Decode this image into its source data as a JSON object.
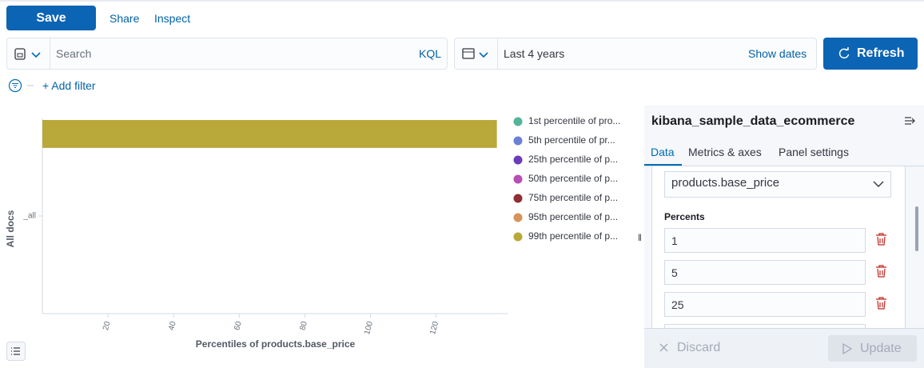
{
  "header": {
    "save": "Save",
    "share": "Share",
    "inspect": "Inspect"
  },
  "query": {
    "placeholder": "Search",
    "language": "KQL"
  },
  "time": {
    "range": "Last 4 years",
    "show_dates": "Show dates",
    "refresh": "Refresh"
  },
  "filter": {
    "add": "+ Add filter"
  },
  "chart_data": {
    "type": "bar",
    "orientation": "horizontal",
    "categories": [
      "_all"
    ],
    "y_axis_label": "All docs",
    "x_axis_label": "Percentiles of products.base_price",
    "xlim": [
      0,
      142
    ],
    "xticks": [
      20,
      40,
      60,
      80,
      100,
      120
    ],
    "series": [
      {
        "name": "1st percentile of pro...",
        "color": "#54b399",
        "values": [
          null
        ]
      },
      {
        "name": "5th percentile of pr...",
        "color": "#6b7fd4",
        "values": [
          null
        ]
      },
      {
        "name": "25th percentile of p...",
        "color": "#6a3cbc",
        "values": [
          null
        ]
      },
      {
        "name": "50th percentile of p...",
        "color": "#b84eb6",
        "values": [
          null
        ]
      },
      {
        "name": "75th percentile of p...",
        "color": "#912e33",
        "values": [
          null
        ]
      },
      {
        "name": "95th percentile of p...",
        "color": "#d6935a",
        "values": [
          null
        ]
      },
      {
        "name": "99th percentile of p...",
        "color": "#b9a83a",
        "values": [
          138.5
        ]
      }
    ]
  },
  "panel": {
    "title": "kibana_sample_data_ecommerce",
    "tabs": [
      "Data",
      "Metrics & axes",
      "Panel settings"
    ],
    "field": "products.base_price",
    "percents_label": "Percents",
    "percents": [
      1,
      5,
      25
    ],
    "discard": "Discard",
    "update": "Update"
  }
}
